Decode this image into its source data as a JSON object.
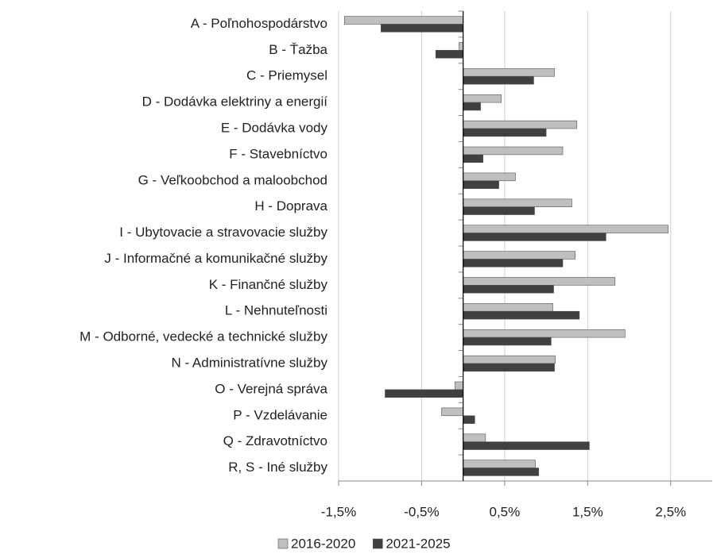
{
  "chart_data": {
    "type": "hbar",
    "categories": [
      "A - Poľnohospodárstvo",
      "B - Ťažba",
      "C - Priemysel",
      "D - Dodávka elektriny a energií",
      "E - Dodávka vody",
      "F - Stavebníctvo",
      "G - Veľkoobchod a maloobchod",
      "H - Doprava",
      "I - Ubytovacie a stravovacie služby",
      "J - Informačné a komunikačné služby",
      "K - Finančné služby",
      "L - Nehnuteľnosti",
      "M - Odborné, vedecké a technické služby",
      "N - Administratívne služby",
      "O - Verejná správa",
      "P - Vzdelávanie",
      "Q - Zdravotníctvo",
      "R, S - Iné služby"
    ],
    "series": [
      {
        "name": "2016-2020",
        "color": "#bfbfbf",
        "values": [
          -1.43,
          -0.05,
          1.1,
          0.46,
          1.37,
          1.2,
          0.63,
          1.31,
          2.47,
          1.35,
          1.83,
          1.08,
          1.95,
          1.11,
          -0.1,
          -0.26,
          0.27,
          0.87
        ]
      },
      {
        "name": "2021-2025",
        "color": "#404040",
        "values": [
          -0.99,
          -0.33,
          0.85,
          0.21,
          1.0,
          0.24,
          0.43,
          0.86,
          1.72,
          1.2,
          1.09,
          1.4,
          1.06,
          1.1,
          -0.94,
          0.14,
          1.52,
          0.91
        ]
      }
    ],
    "xlim": [
      -1.5,
      3
    ],
    "xticks": [
      {
        "value": -1.5,
        "label": "-1,5%"
      },
      {
        "value": -0.5,
        "label": "-0,5%"
      },
      {
        "value": 0.5,
        "label": "0,5%"
      },
      {
        "value": 1.5,
        "label": "1,5%"
      },
      {
        "value": 2.5,
        "label": "2,5%"
      }
    ],
    "grid": true,
    "legend": "bottom"
  }
}
